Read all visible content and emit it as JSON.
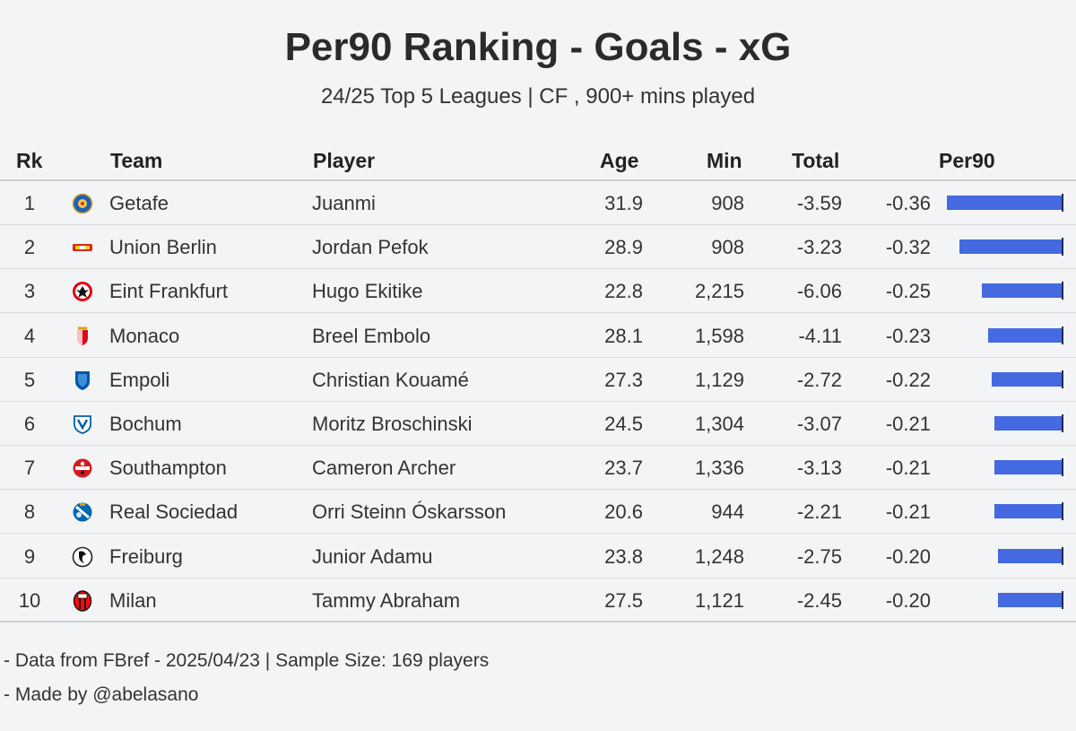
{
  "title": "Per90 Ranking - Goals - xG",
  "subtitle": "24/25 Top 5 Leagues | CF , 900+ mins played",
  "columns": {
    "rk": "Rk",
    "team": "Team",
    "player": "Player",
    "age": "Age",
    "min": "Min",
    "total": "Total",
    "per90": "Per90"
  },
  "colors": {
    "bar": "#4469e0",
    "background": "#f3f4f6"
  },
  "chart_data": {
    "type": "table",
    "title": "Per90 Ranking - Goals - xG",
    "subtitle": "24/25 Top 5 Leagues | CF , 900+ mins played",
    "bar_column": "Per90",
    "rows": [
      {
        "rk": "1",
        "team": "Getafe",
        "logo": "getafe-crest-icon",
        "player": "Juanmi",
        "age": "31.9",
        "min": "908",
        "total": "-3.59",
        "per90": "-0.36",
        "per90_value": -0.36
      },
      {
        "rk": "2",
        "team": "Union Berlin",
        "logo": "union-berlin-crest-icon",
        "player": "Jordan Pefok",
        "age": "28.9",
        "min": "908",
        "total": "-3.23",
        "per90": "-0.32",
        "per90_value": -0.32
      },
      {
        "rk": "3",
        "team": "Eint Frankfurt",
        "logo": "eintracht-frankfurt-crest-icon",
        "player": "Hugo Ekitike",
        "age": "22.8",
        "min": "2,215",
        "total": "-6.06",
        "per90": "-0.25",
        "per90_value": -0.25
      },
      {
        "rk": "4",
        "team": "Monaco",
        "logo": "monaco-crest-icon",
        "player": "Breel Embolo",
        "age": "28.1",
        "min": "1,598",
        "total": "-4.11",
        "per90": "-0.23",
        "per90_value": -0.23
      },
      {
        "rk": "5",
        "team": "Empoli",
        "logo": "empoli-crest-icon",
        "player": "Christian Kouamé",
        "age": "27.3",
        "min": "1,129",
        "total": "-2.72",
        "per90": "-0.22",
        "per90_value": -0.22
      },
      {
        "rk": "6",
        "team": "Bochum",
        "logo": "bochum-crest-icon",
        "player": "Moritz Broschinski",
        "age": "24.5",
        "min": "1,304",
        "total": "-3.07",
        "per90": "-0.21",
        "per90_value": -0.21
      },
      {
        "rk": "7",
        "team": "Southampton",
        "logo": "southampton-crest-icon",
        "player": "Cameron Archer",
        "age": "23.7",
        "min": "1,336",
        "total": "-3.13",
        "per90": "-0.21",
        "per90_value": -0.21
      },
      {
        "rk": "8",
        "team": "Real Sociedad",
        "logo": "real-sociedad-crest-icon",
        "player": "Orri Steinn Óskarsson",
        "age": "20.6",
        "min": "944",
        "total": "-2.21",
        "per90": "-0.21",
        "per90_value": -0.21
      },
      {
        "rk": "9",
        "team": "Freiburg",
        "logo": "freiburg-crest-icon",
        "player": "Junior Adamu",
        "age": "23.8",
        "min": "1,248",
        "total": "-2.75",
        "per90": "-0.20",
        "per90_value": -0.2
      },
      {
        "rk": "10",
        "team": "Milan",
        "logo": "milan-crest-icon",
        "player": "Tammy Abraham",
        "age": "27.5",
        "min": "1,121",
        "total": "-2.45",
        "per90": "-0.20",
        "per90_value": -0.2
      }
    ]
  },
  "footer": {
    "source": "- Data from FBref - 2025/04/23 | Sample Size: 169 players",
    "credit": "- Made by @abelasano"
  }
}
